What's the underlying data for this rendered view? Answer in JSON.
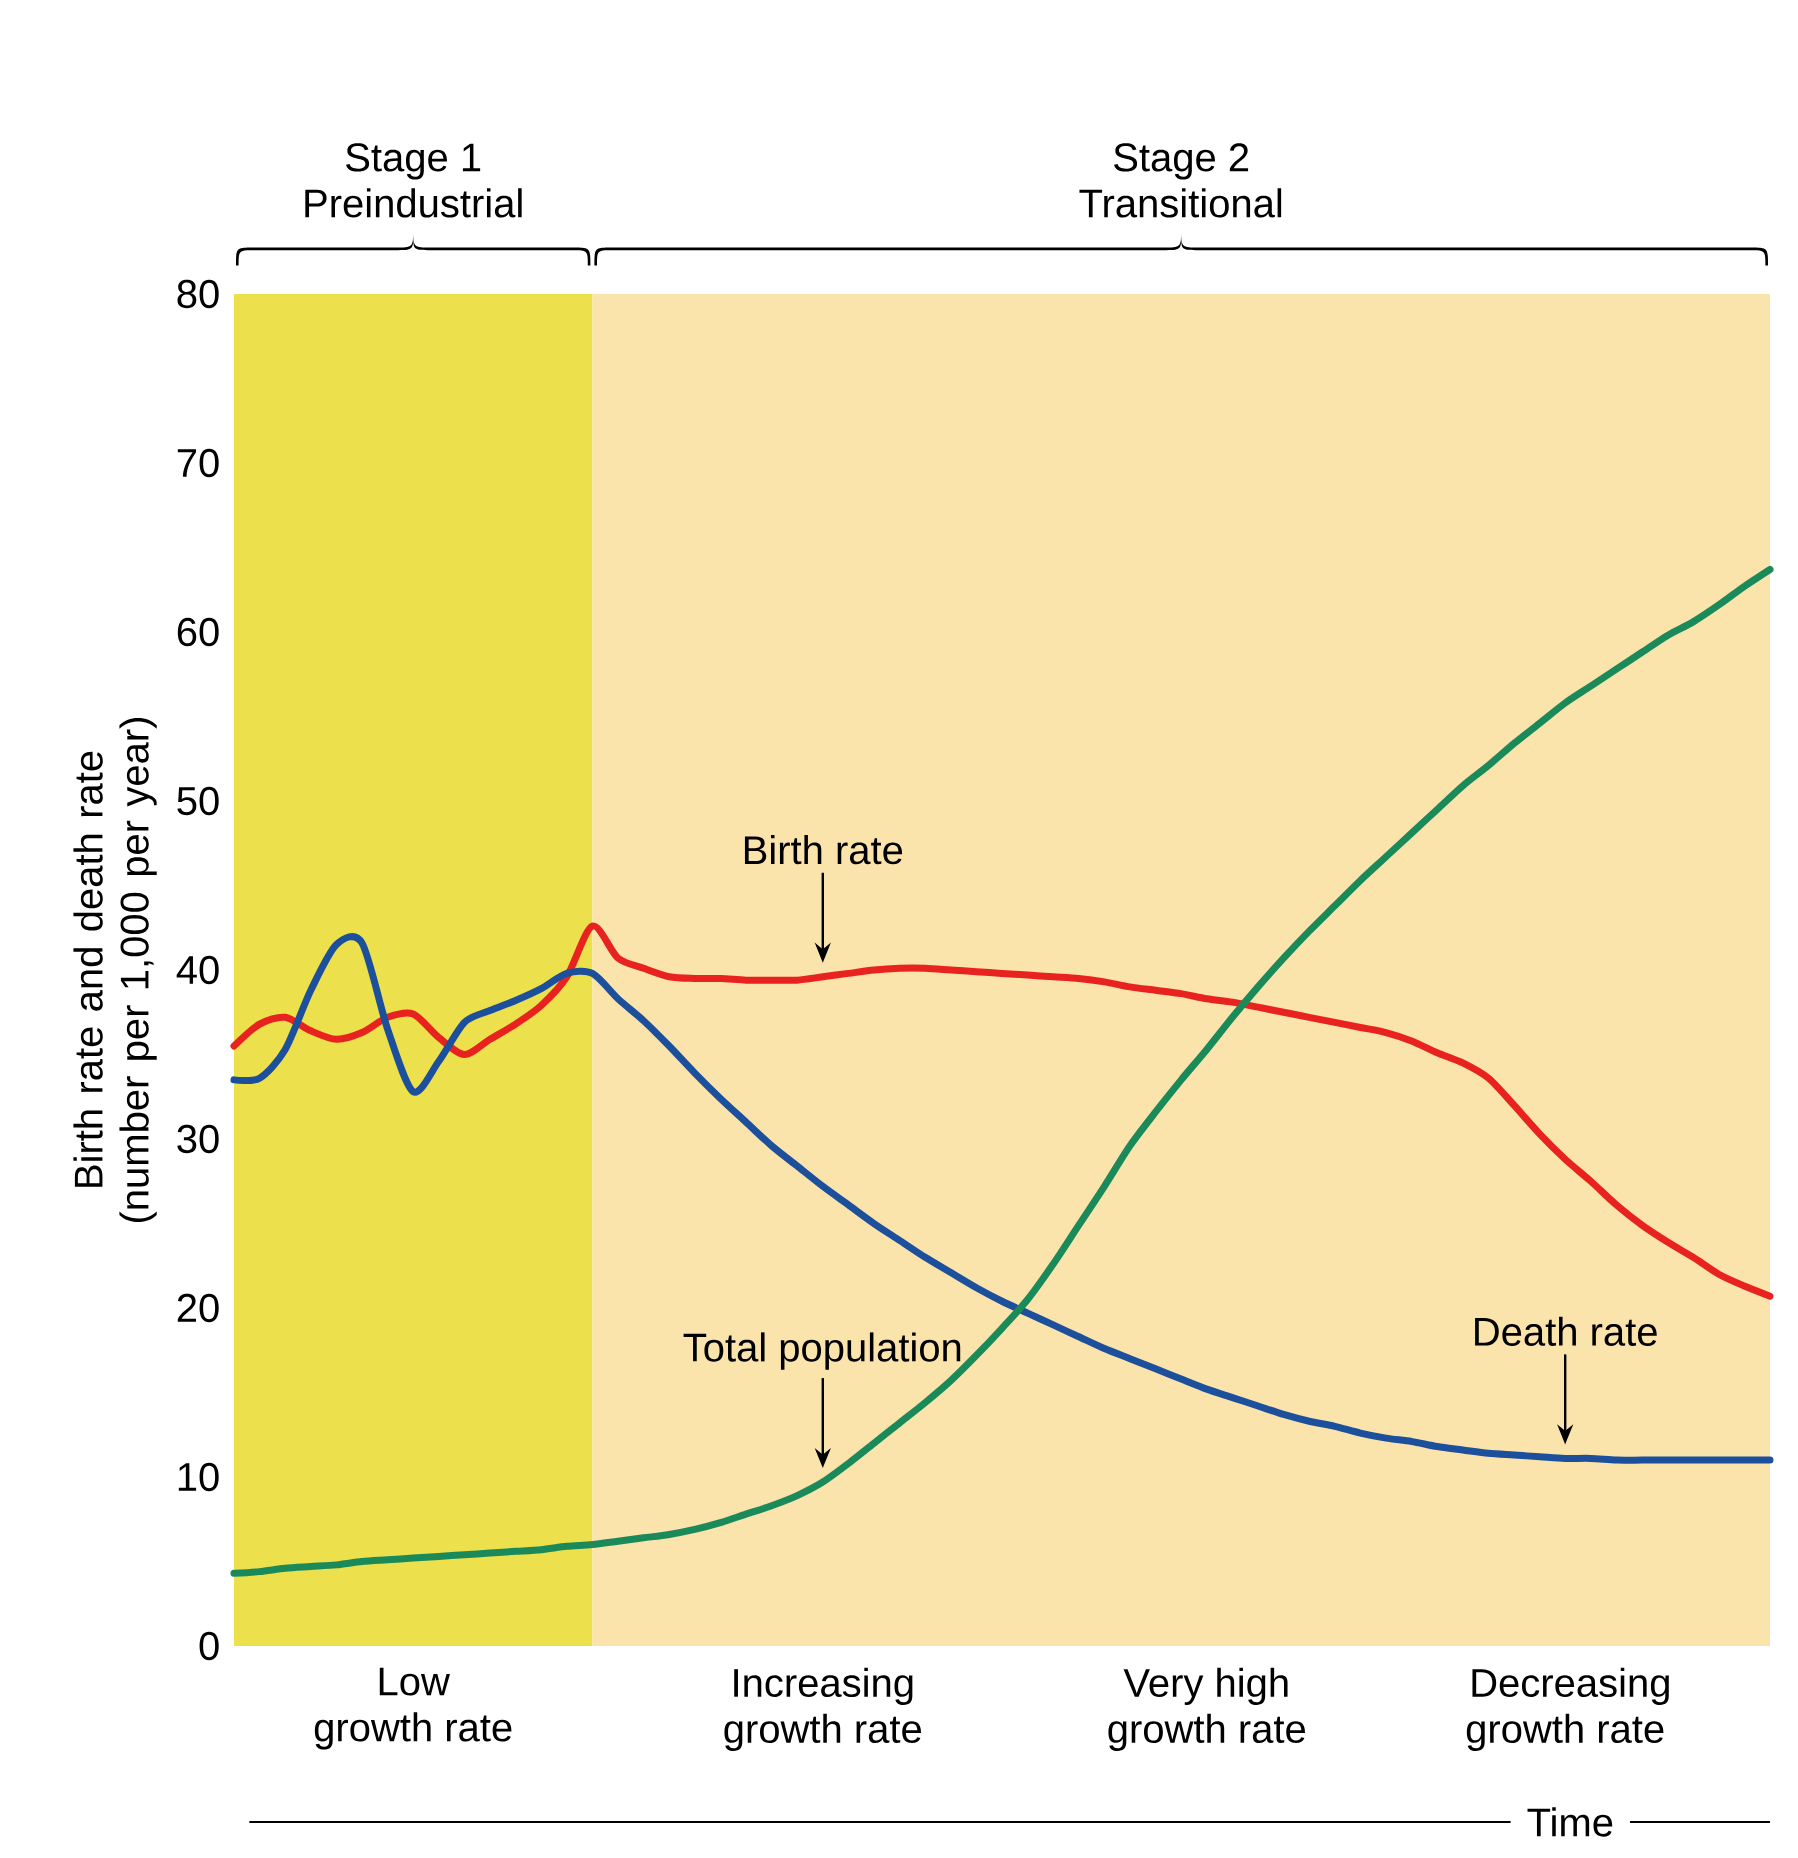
{
  "chart_data": {
    "type": "line",
    "xlabel": "Time",
    "ylabel": "Birth rate and death rate (number per 1,000 per year)",
    "categories": [
      null,
      null,
      null,
      null,
      null,
      null,
      null,
      "Low growth rate",
      null,
      null,
      null,
      null,
      null,
      null,
      null,
      null,
      null,
      null,
      null,
      null,
      null,
      null,
      null,
      "Increasing growth rate",
      null,
      null,
      null,
      null,
      null,
      null,
      null,
      null,
      null,
      null,
      null,
      null,
      null,
      null,
      "Very high growth rate",
      null,
      null,
      null,
      null,
      null,
      null,
      null,
      null,
      null,
      null,
      null,
      null,
      null,
      "Decreasing growth rate",
      null,
      null,
      null,
      null,
      null,
      null,
      null,
      null
    ],
    "ylim": [
      0,
      80
    ],
    "yticks": [
      0,
      10,
      20,
      30,
      40,
      50,
      60,
      70,
      80
    ],
    "grid": false,
    "marker": "none",
    "line_style": "solid",
    "series": [
      {
        "color": "#e8231f",
        "values": [
          35.5,
          36.8,
          37.2,
          36.4,
          35.9,
          36.3,
          37.2,
          37.4,
          36.0,
          35.0,
          35.9,
          36.8,
          37.9,
          39.6,
          42.6,
          40.7,
          40.1,
          39.6,
          39.5,
          39.5,
          39.4,
          39.4,
          39.4,
          39.6,
          39.8,
          40.0,
          40.1,
          40.1,
          40.0,
          39.9,
          39.8,
          39.7,
          39.6,
          39.5,
          39.3,
          39.0,
          38.8,
          38.6,
          38.3,
          38.1,
          37.8,
          37.5,
          37.2,
          36.9,
          36.6,
          36.3,
          35.8,
          35.1,
          34.5,
          33.6,
          32.0,
          30.3,
          28.8,
          27.5,
          26.1,
          24.9,
          23.9,
          23.0,
          22.0,
          21.3,
          20.7
        ]
      },
      {
        "color": "#1c4f9c",
        "values": [
          33.5,
          33.6,
          35.3,
          38.8,
          41.5,
          41.6,
          36.5,
          32.8,
          34.6,
          36.9,
          37.6,
          38.2,
          38.9,
          39.8,
          39.8,
          38.3,
          37.0,
          35.5,
          33.9,
          32.4,
          31.0,
          29.6,
          28.4,
          27.2,
          26.1,
          25.0,
          24.0,
          23.0,
          22.1,
          21.2,
          20.4,
          19.7,
          19.0,
          18.3,
          17.6,
          17.0,
          16.4,
          15.8,
          15.2,
          14.7,
          14.2,
          13.7,
          13.3,
          13.0,
          12.6,
          12.3,
          12.1,
          11.8,
          11.6,
          11.4,
          11.3,
          11.2,
          11.1,
          11.1,
          11.0,
          11.0,
          11.0,
          11.0,
          11.0,
          11.0,
          11.0
        ]
      },
      {
        "color": "#1b8a5a",
        "values": [
          4.3,
          4.4,
          4.6,
          4.7,
          4.8,
          5.0,
          5.1,
          5.2,
          5.3,
          5.4,
          5.5,
          5.6,
          5.7,
          5.9,
          6.0,
          6.2,
          6.4,
          6.6,
          6.9,
          7.3,
          7.8,
          8.3,
          8.9,
          9.7,
          10.8,
          12.0,
          13.2,
          14.4,
          15.7,
          17.2,
          18.8,
          20.5,
          22.6,
          24.9,
          27.2,
          29.6,
          31.6,
          33.5,
          35.3,
          37.2,
          39.0,
          40.7,
          42.3,
          43.8,
          45.3,
          46.7,
          48.1,
          49.5,
          50.9,
          52.1,
          53.4,
          54.6,
          55.8,
          56.8,
          57.8,
          58.8,
          59.8,
          60.6,
          61.6,
          62.7,
          63.7
        ]
      }
    ],
    "annotations": [
      {
        "text": "Birth rate",
        "x": "Increasing growth rate",
        "y": 39.6
      },
      {
        "text": "Death rate",
        "x": "Decreasing growth rate",
        "y": 11.1
      },
      {
        "text": "Total population",
        "x": "Increasing growth rate",
        "y": 9.7
      },
      "Stage 1 Preindustrial",
      "Stage 2 Transitional"
    ]
  }
}
